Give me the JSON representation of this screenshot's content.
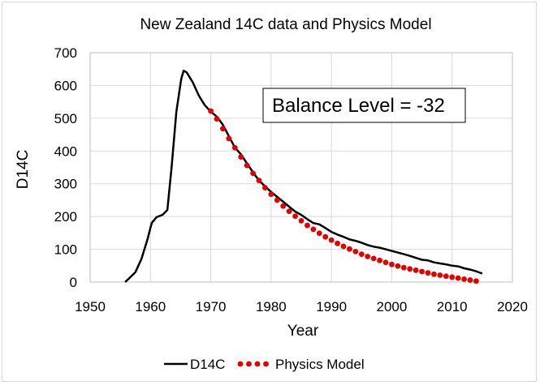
{
  "chart_data": {
    "type": "line",
    "title": "New Zealand 14C data and Physics Model",
    "xlabel": "Year",
    "ylabel": "D14C",
    "xlim": [
      1950,
      2020
    ],
    "ylim": [
      0,
      700
    ],
    "x_ticks": [
      "1950",
      "1960",
      "1970",
      "1980",
      "1990",
      "2000",
      "2010",
      "2020"
    ],
    "y_ticks": [
      "0",
      "100",
      "200",
      "300",
      "400",
      "500",
      "600",
      "700"
    ],
    "grid": true,
    "legend_position": "bottom",
    "annotation": "Balance Level = -32",
    "series": [
      {
        "name": "D14C",
        "style": "solid-line",
        "color": "#000000",
        "points": [
          [
            1955.8,
            0
          ],
          [
            1956.5,
            12
          ],
          [
            1957.5,
            30
          ],
          [
            1958.5,
            70
          ],
          [
            1959.5,
            130
          ],
          [
            1960.2,
            180
          ],
          [
            1961,
            198
          ],
          [
            1962,
            205
          ],
          [
            1962.8,
            220
          ],
          [
            1963.5,
            350
          ],
          [
            1964.3,
            520
          ],
          [
            1965.1,
            620
          ],
          [
            1965.5,
            645
          ],
          [
            1966,
            640
          ],
          [
            1967,
            610
          ],
          [
            1968,
            570
          ],
          [
            1969,
            540
          ],
          [
            1970,
            520
          ],
          [
            1971,
            505
          ],
          [
            1972,
            480
          ],
          [
            1973,
            445
          ],
          [
            1974,
            410
          ],
          [
            1975,
            390
          ],
          [
            1976,
            362
          ],
          [
            1977,
            335
          ],
          [
            1978,
            310
          ],
          [
            1979,
            292
          ],
          [
            1980,
            275
          ],
          [
            1981,
            260
          ],
          [
            1982,
            245
          ],
          [
            1983,
            230
          ],
          [
            1984,
            215
          ],
          [
            1985,
            205
          ],
          [
            1986,
            192
          ],
          [
            1987,
            180
          ],
          [
            1988,
            176
          ],
          [
            1989,
            165
          ],
          [
            1990,
            153
          ],
          [
            1991,
            145
          ],
          [
            1992,
            138
          ],
          [
            1993,
            130
          ],
          [
            1994,
            126
          ],
          [
            1995,
            120
          ],
          [
            1996,
            113
          ],
          [
            1997,
            108
          ],
          [
            1998,
            105
          ],
          [
            1999,
            100
          ],
          [
            2000,
            95
          ],
          [
            2001,
            90
          ],
          [
            2002,
            85
          ],
          [
            2003,
            80
          ],
          [
            2004,
            74
          ],
          [
            2005,
            68
          ],
          [
            2006,
            66
          ],
          [
            2007,
            60
          ],
          [
            2008,
            57
          ],
          [
            2009,
            54
          ],
          [
            2010,
            50
          ],
          [
            2011,
            48
          ],
          [
            2012,
            42
          ],
          [
            2013,
            38
          ],
          [
            2014,
            33
          ],
          [
            2015,
            26
          ]
        ]
      },
      {
        "name": "Physics Model",
        "style": "dotted",
        "color": "#e00000",
        "points": [
          [
            1970,
            522
          ],
          [
            1971,
            498
          ],
          [
            1972,
            468
          ],
          [
            1973,
            438
          ],
          [
            1974,
            410
          ],
          [
            1975,
            382
          ],
          [
            1976,
            356
          ],
          [
            1977,
            332
          ],
          [
            1978,
            310
          ],
          [
            1979,
            288
          ],
          [
            1980,
            268
          ],
          [
            1981,
            250
          ],
          [
            1982,
            232
          ],
          [
            1983,
            216
          ],
          [
            1984,
            201
          ],
          [
            1985,
            187
          ],
          [
            1986,
            173
          ],
          [
            1987,
            161
          ],
          [
            1988,
            149
          ],
          [
            1989,
            138
          ],
          [
            1990,
            128
          ],
          [
            1991,
            118
          ],
          [
            1992,
            109
          ],
          [
            1993,
            101
          ],
          [
            1994,
            93
          ],
          [
            1995,
            85
          ],
          [
            1996,
            78
          ],
          [
            1997,
            72
          ],
          [
            1998,
            66
          ],
          [
            1999,
            60
          ],
          [
            2000,
            54
          ],
          [
            2001,
            49
          ],
          [
            2002,
            44
          ],
          [
            2003,
            40
          ],
          [
            2004,
            36
          ],
          [
            2005,
            32
          ],
          [
            2006,
            28
          ],
          [
            2007,
            24
          ],
          [
            2008,
            21
          ],
          [
            2009,
            18
          ],
          [
            2010,
            15
          ],
          [
            2011,
            12
          ],
          [
            2012,
            9
          ],
          [
            2013,
            6
          ],
          [
            2014,
            3
          ]
        ]
      }
    ]
  }
}
